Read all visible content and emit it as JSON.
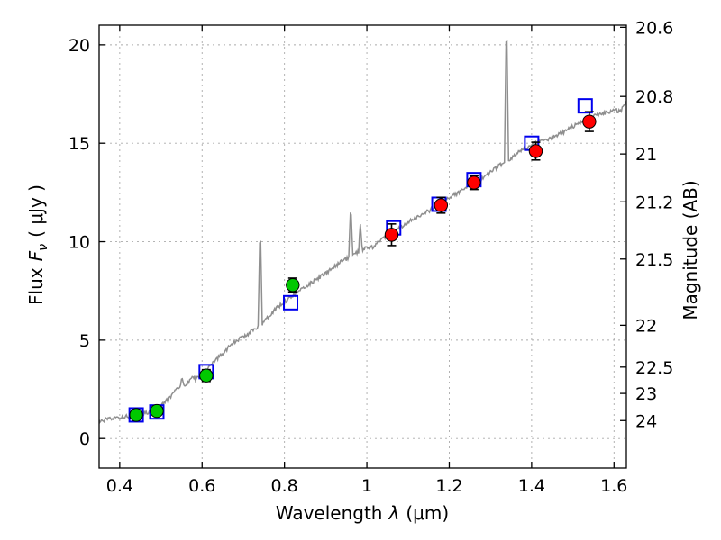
{
  "figure": {
    "background": "#ffffff",
    "axis_color": "#000000"
  },
  "chart_data": {
    "type": "line+scatter",
    "title": "",
    "xlabel": {
      "prefix": "Wavelength",
      "symbol": "λ",
      "suffix": "(μm)"
    },
    "ylabel_left": {
      "prefix": "Flux",
      "symbol": "F",
      "subscript": "ν",
      "suffix": "( μJy )"
    },
    "ylabel_right": "Magnitude (AB)",
    "xlim": [
      0.35,
      1.63
    ],
    "ylim_flux": [
      -1.5,
      21.0
    ],
    "mag_zero_point": 23.9,
    "x_ticks": {
      "values": [
        0.4,
        0.6,
        0.8,
        1.0,
        1.2,
        1.4,
        1.6
      ],
      "labels": [
        "0.4",
        "0.6",
        "0.8",
        "1",
        "1.2",
        "1.4",
        "1.6"
      ]
    },
    "flux_ticks": {
      "values": [
        0,
        5,
        10,
        15,
        20
      ],
      "labels": [
        "0",
        "5",
        "10",
        "15",
        "20"
      ]
    },
    "mag_ticks": {
      "values": [
        20.6,
        20.8,
        21.0,
        21.2,
        21.5,
        22.0,
        22.5,
        23.0,
        24.0
      ],
      "labels": [
        "20.6",
        "20.8",
        "21",
        "21.2",
        "21.5",
        "22",
        "22.5",
        "23",
        "24"
      ]
    },
    "grid": {
      "show": true,
      "color": "#aaaaaa",
      "dash": "2 4"
    },
    "spectrum": {
      "name": "model-spectrum",
      "color": "#8f8f8f",
      "noise_amplitude": 0.1,
      "points": [
        [
          0.35,
          0.85
        ],
        [
          0.365,
          0.95
        ],
        [
          0.38,
          1.0
        ],
        [
          0.395,
          1.05
        ],
        [
          0.41,
          1.1
        ],
        [
          0.425,
          1.15
        ],
        [
          0.44,
          1.2
        ],
        [
          0.455,
          1.25
        ],
        [
          0.47,
          1.35
        ],
        [
          0.485,
          1.45
        ],
        [
          0.5,
          1.65
        ],
        [
          0.515,
          1.95
        ],
        [
          0.53,
          2.3
        ],
        [
          0.545,
          2.6
        ],
        [
          0.552,
          3.05
        ],
        [
          0.558,
          2.7
        ],
        [
          0.57,
          2.9
        ],
        [
          0.578,
          3.2
        ],
        [
          0.585,
          3.0
        ],
        [
          0.6,
          3.3
        ],
        [
          0.615,
          3.55
        ],
        [
          0.63,
          3.9
        ],
        [
          0.65,
          4.35
        ],
        [
          0.67,
          4.75
        ],
        [
          0.69,
          5.05
        ],
        [
          0.71,
          5.3
        ],
        [
          0.725,
          5.5
        ],
        [
          0.736,
          5.7
        ],
        [
          0.741,
          11.1
        ],
        [
          0.746,
          5.85
        ],
        [
          0.76,
          6.2
        ],
        [
          0.78,
          6.6
        ],
        [
          0.8,
          6.95
        ],
        [
          0.82,
          7.25
        ],
        [
          0.84,
          7.55
        ],
        [
          0.86,
          7.85
        ],
        [
          0.88,
          8.1
        ],
        [
          0.9,
          8.4
        ],
        [
          0.92,
          8.7
        ],
        [
          0.94,
          9.0
        ],
        [
          0.956,
          9.2
        ],
        [
          0.961,
          12.0
        ],
        [
          0.966,
          9.3
        ],
        [
          0.98,
          9.5
        ],
        [
          0.984,
          10.9
        ],
        [
          0.989,
          9.6
        ],
        [
          1.0,
          9.75
        ],
        [
          1.015,
          9.7
        ],
        [
          1.03,
          10.0
        ],
        [
          1.05,
          10.3
        ],
        [
          1.07,
          10.6
        ],
        [
          1.09,
          10.85
        ],
        [
          1.11,
          11.1
        ],
        [
          1.13,
          11.35
        ],
        [
          1.15,
          11.55
        ],
        [
          1.17,
          11.8
        ],
        [
          1.19,
          12.1
        ],
        [
          1.21,
          12.35
        ],
        [
          1.23,
          12.6
        ],
        [
          1.25,
          12.85
        ],
        [
          1.27,
          13.1
        ],
        [
          1.29,
          13.4
        ],
        [
          1.31,
          13.7
        ],
        [
          1.325,
          13.9
        ],
        [
          1.334,
          14.0
        ],
        [
          1.339,
          21.6
        ],
        [
          1.344,
          14.1
        ],
        [
          1.36,
          14.4
        ],
        [
          1.38,
          14.7
        ],
        [
          1.4,
          14.95
        ],
        [
          1.42,
          15.1
        ],
        [
          1.44,
          15.2
        ],
        [
          1.46,
          15.4
        ],
        [
          1.48,
          15.6
        ],
        [
          1.5,
          15.85
        ],
        [
          1.52,
          16.05
        ],
        [
          1.54,
          16.25
        ],
        [
          1.56,
          16.45
        ],
        [
          1.58,
          16.55
        ],
        [
          1.6,
          16.7
        ],
        [
          1.615,
          16.6
        ],
        [
          1.63,
          17.1
        ]
      ]
    },
    "series": [
      {
        "name": "observed-photometry-optical",
        "marker": "circle",
        "color": "#00c800",
        "edge_color": "#000000",
        "points": [
          {
            "x": 0.44,
            "y": 1.2,
            "err": 0.2
          },
          {
            "x": 0.49,
            "y": 1.4,
            "err": 0.2
          },
          {
            "x": 0.61,
            "y": 3.2,
            "err": 0.3
          },
          {
            "x": 0.82,
            "y": 7.8,
            "err": 0.35
          }
        ]
      },
      {
        "name": "observed-photometry-infrared",
        "marker": "circle",
        "color": "#ff0000",
        "edge_color": "#000000",
        "points": [
          {
            "x": 1.06,
            "y": 10.35,
            "err": 0.55
          },
          {
            "x": 1.18,
            "y": 11.85,
            "err": 0.4
          },
          {
            "x": 1.26,
            "y": 13.0,
            "err": 0.35
          },
          {
            "x": 1.41,
            "y": 14.6,
            "err": 0.45
          },
          {
            "x": 1.54,
            "y": 16.1,
            "err": 0.5
          }
        ]
      },
      {
        "name": "model-photometry",
        "marker": "open-square",
        "color": "#0000ee",
        "points": [
          {
            "x": 0.44,
            "y": 1.2
          },
          {
            "x": 0.49,
            "y": 1.35
          },
          {
            "x": 0.61,
            "y": 3.4
          },
          {
            "x": 0.815,
            "y": 6.9
          },
          {
            "x": 1.065,
            "y": 10.7
          },
          {
            "x": 1.175,
            "y": 11.9
          },
          {
            "x": 1.26,
            "y": 13.15
          },
          {
            "x": 1.4,
            "y": 15.0
          },
          {
            "x": 1.53,
            "y": 16.9
          }
        ]
      }
    ]
  }
}
